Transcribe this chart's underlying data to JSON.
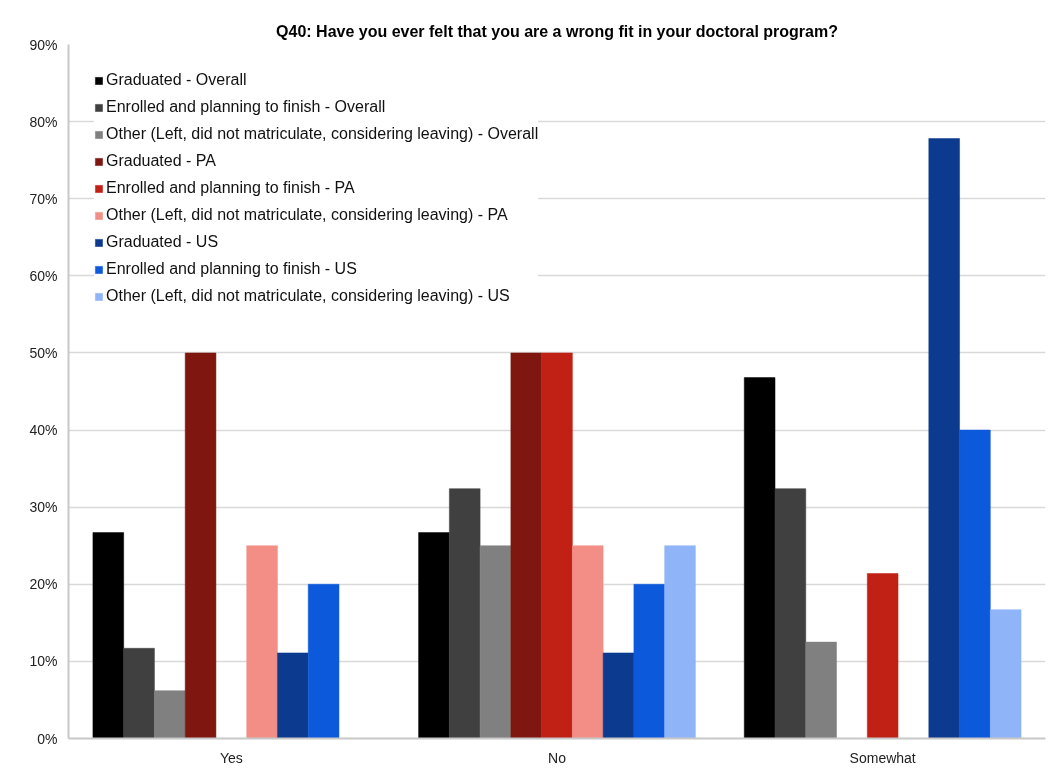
{
  "chart_data": {
    "type": "bar",
    "title": "Q40: Have you ever felt that you are a wrong fit in your doctoral program?",
    "categories": [
      "Yes",
      "No",
      "Somewhat"
    ],
    "series": [
      {
        "name": "Graduated - Overall",
        "color": "#000000",
        "values": [
          26.7,
          26.7,
          46.8
        ]
      },
      {
        "name": "Enrolled and planning to finish - Overall",
        "color": "#404040",
        "values": [
          11.7,
          32.4,
          32.4
        ]
      },
      {
        "name": "Other (Left, did not matriculate, considering leaving) - Overall",
        "color": "#808080",
        "values": [
          6.2,
          25,
          12.5
        ]
      },
      {
        "name": "Graduated - PA",
        "color": "#7f1710",
        "values": [
          50,
          50,
          0
        ]
      },
      {
        "name": "Enrolled and planning to finish - PA",
        "color": "#c12115",
        "values": [
          0,
          50,
          21.4
        ]
      },
      {
        "name": "Other (Left, did not matriculate, considering leaving) - PA",
        "color": "#f28e86",
        "values": [
          25,
          25,
          0
        ]
      },
      {
        "name": "Graduated - US",
        "color": "#0b3a8f",
        "values": [
          11.1,
          11.1,
          77.8
        ]
      },
      {
        "name": "Enrolled and planning to finish - US",
        "color": "#0c59dc",
        "values": [
          20,
          20,
          40
        ]
      },
      {
        "name": "Other (Left, did not matriculate, considering leaving) - US",
        "color": "#8fb4f7",
        "values": [
          0,
          25,
          16.7
        ]
      }
    ],
    "ylim": [
      0,
      90
    ],
    "yticks": [
      {
        "value": 0,
        "label": "0%"
      },
      {
        "value": 10,
        "label": "10%"
      },
      {
        "value": 20,
        "label": "20%"
      },
      {
        "value": 30,
        "label": "30%"
      },
      {
        "value": 40,
        "label": "40%"
      },
      {
        "value": 50,
        "label": "50%"
      },
      {
        "value": 60,
        "label": "60%"
      },
      {
        "value": 70,
        "label": "70%"
      },
      {
        "value": 80,
        "label": "80%"
      },
      {
        "value": 90,
        "label": "90%"
      }
    ],
    "grid": "y",
    "legend": "top left"
  }
}
